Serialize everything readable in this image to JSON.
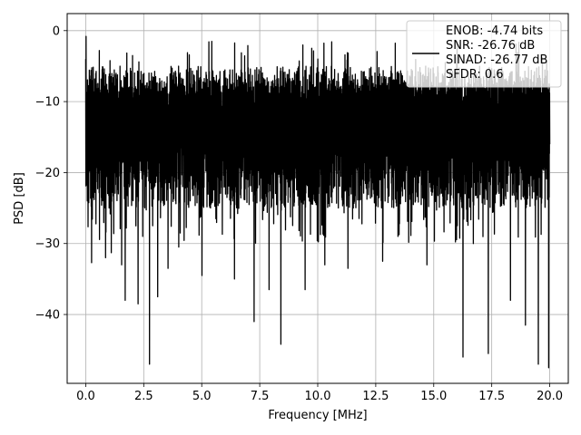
{
  "chart_data": {
    "type": "line",
    "xlabel": "Frequency [MHz]",
    "ylabel": "PSD [dB]",
    "xlim": [
      -0.8,
      20.8
    ],
    "ylim": [
      -49.7,
      2.4
    ],
    "x_ticks": [
      0.0,
      2.5,
      5.0,
      7.5,
      10.0,
      12.5,
      15.0,
      17.5,
      20.0
    ],
    "x_tick_labels": [
      "0.0",
      "2.5",
      "5.0",
      "7.5",
      "10.0",
      "12.5",
      "15.0",
      "17.5",
      "20.0"
    ],
    "y_ticks": [
      0,
      -10,
      -20,
      -30,
      -40
    ],
    "y_tick_labels": [
      "0",
      "−10",
      "−20",
      "−30",
      "−40"
    ],
    "grid": true,
    "legend_position": "top-right",
    "legend_lines": [
      "ENOB: -4.74 bits",
      "SNR: -26.76 dB",
      "SINAD: -26.77 dB",
      "SFDR: 0.6"
    ],
    "series": [
      {
        "color": "#000000",
        "x_range": [
          0.0,
          20.0
        ],
        "points": 10000,
        "peak_value": -0.8,
        "band_upper_typical": -5,
        "band_lower_typical": -25,
        "deep_notches": [
          {
            "x": 0.25,
            "y": -32.7
          },
          {
            "x": 0.85,
            "y": -32.0
          },
          {
            "x": 1.1,
            "y": -31.3
          },
          {
            "x": 1.55,
            "y": -33.0
          },
          {
            "x": 1.7,
            "y": -38.0
          },
          {
            "x": 2.25,
            "y": -38.5
          },
          {
            "x": 2.75,
            "y": -47.0
          },
          {
            "x": 3.1,
            "y": -37.5
          },
          {
            "x": 3.55,
            "y": -33.5
          },
          {
            "x": 4.0,
            "y": -30.5
          },
          {
            "x": 5.0,
            "y": -34.5
          },
          {
            "x": 6.4,
            "y": -35.0
          },
          {
            "x": 7.25,
            "y": -41.0
          },
          {
            "x": 7.9,
            "y": -36.5
          },
          {
            "x": 8.4,
            "y": -44.2
          },
          {
            "x": 9.45,
            "y": -36.5
          },
          {
            "x": 10.3,
            "y": -33.0
          },
          {
            "x": 11.3,
            "y": -33.5
          },
          {
            "x": 12.8,
            "y": -32.5
          },
          {
            "x": 13.45,
            "y": -29.0
          },
          {
            "x": 14.7,
            "y": -33.0
          },
          {
            "x": 16.25,
            "y": -46.0
          },
          {
            "x": 16.7,
            "y": -30.0
          },
          {
            "x": 17.35,
            "y": -45.5
          },
          {
            "x": 18.3,
            "y": -38.0
          },
          {
            "x": 18.95,
            "y": -41.5
          },
          {
            "x": 19.5,
            "y": -47.0
          },
          {
            "x": 19.95,
            "y": -47.5
          }
        ]
      }
    ]
  }
}
